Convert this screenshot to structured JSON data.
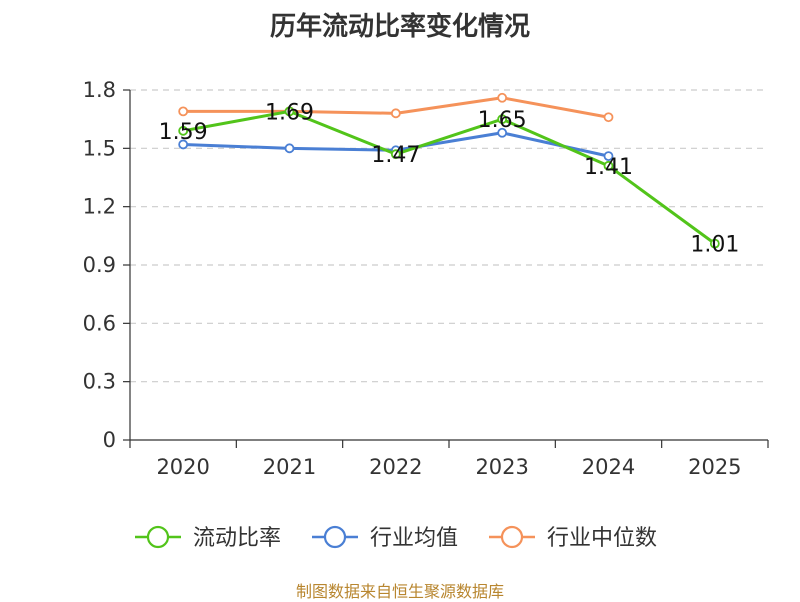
{
  "title": "历年流动比率变化情况",
  "source": "制图数据来自恒生聚源数据库",
  "chart_data": {
    "type": "line",
    "title": "历年流动比率变化情况",
    "categories": [
      "2020",
      "2021",
      "2022",
      "2023",
      "2024",
      "2025"
    ],
    "ylim": [
      0,
      1.8
    ],
    "yticks": [
      "0",
      "0.3",
      "0.6",
      "0.9",
      "1.2",
      "1.5",
      "1.8"
    ],
    "grid": true,
    "legend_position": "bottom",
    "series": [
      {
        "name": "流动比率",
        "color": "#52c41a",
        "labeled": true,
        "values": [
          1.59,
          1.69,
          1.47,
          1.65,
          1.41,
          1.01
        ],
        "labels": [
          "1.59",
          "1.69",
          "1.47",
          "1.65",
          "1.41",
          "1.01"
        ]
      },
      {
        "name": "行业均值",
        "color": "#4a7fd4",
        "labeled": false,
        "values": [
          1.52,
          1.5,
          1.49,
          1.58,
          1.46,
          null
        ]
      },
      {
        "name": "行业中位数",
        "color": "#f5925a",
        "labeled": false,
        "values": [
          1.69,
          1.69,
          1.68,
          1.76,
          1.66,
          null
        ]
      }
    ]
  }
}
